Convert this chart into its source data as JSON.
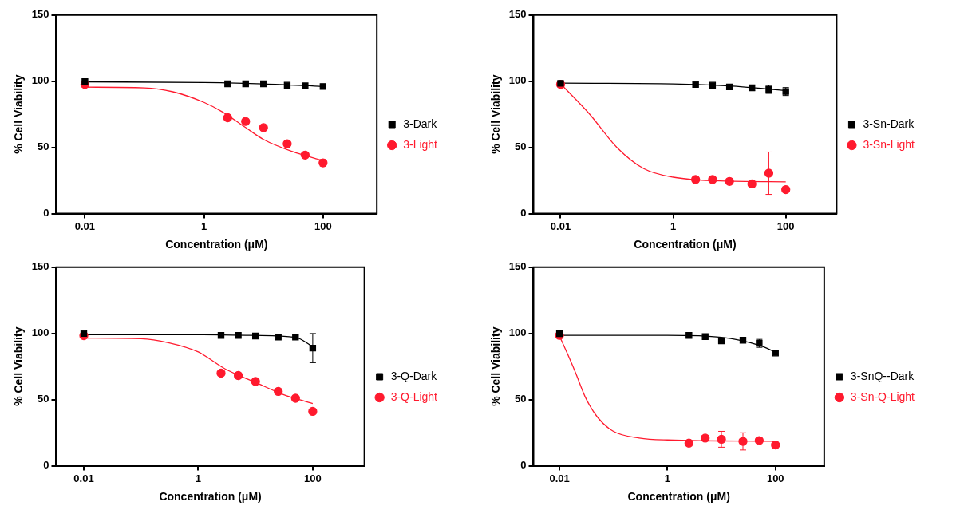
{
  "chart_data": [
    {
      "type": "scatter",
      "xlabel": "Concentration (μM)",
      "ylabel": "% Cell Viability",
      "log": "x",
      "grid": false,
      "legend": "right",
      "xlim": [
        0.0033,
        800
      ],
      "xticks": [
        0.01,
        1,
        100
      ],
      "ylim": [
        0,
        150
      ],
      "yticks": [
        0,
        50,
        100,
        150
      ],
      "x": [
        0.01,
        2.5,
        5,
        10,
        25,
        50,
        100
      ],
      "series": [
        {
          "name": "3-Dark",
          "color": "#000000",
          "marker": "square",
          "values": [
            99.7,
            98,
            98,
            98,
            97,
            96.5,
            96
          ]
        },
        {
          "name": "3-Light",
          "color": "#ff1a2e",
          "marker": "circle",
          "values": [
            97.6,
            72.4,
            69.6,
            64.9,
            52.7,
            44.2,
            38.3
          ],
          "errors": [
            null,
            2,
            null,
            null,
            2,
            2,
            2.5
          ]
        },
        {
          "color": "#000000",
          "type": "line",
          "marker": "none",
          "x": [
            0.01,
            1,
            10,
            100
          ],
          "values": [
            99.5,
            99,
            98,
            96
          ]
        },
        {
          "color": "#ff1a2e",
          "type": "line",
          "marker": "none",
          "x": [
            0.01,
            0.1,
            0.3,
            1,
            2,
            5,
            10,
            30,
            100
          ],
          "values": [
            95.5,
            95,
            92,
            84,
            77,
            65,
            56,
            47,
            40
          ]
        }
      ]
    },
    {
      "type": "scatter",
      "xlabel": "Concentration (μM)",
      "ylabel": "% Cell Viability",
      "log": "x",
      "grid": false,
      "legend": "right",
      "xlim": [
        0.0033,
        800
      ],
      "xticks": [
        0.01,
        1,
        100
      ],
      "ylim": [
        0,
        150
      ],
      "yticks": [
        0,
        50,
        100,
        150
      ],
      "x": [
        0.01,
        2.5,
        5,
        10,
        25,
        50,
        100
      ],
      "series": [
        {
          "name": "3-Sn-Dark",
          "color": "#000000",
          "marker": "square",
          "values": [
            98.4,
            97.6,
            97,
            95.7,
            95,
            93.8,
            92.2
          ],
          "errors": [
            null,
            null,
            null,
            null,
            2,
            3,
            3
          ]
        },
        {
          "name": "3-Sn-Light",
          "color": "#ff1a2e",
          "marker": "circle",
          "values": [
            97.6,
            25.7,
            25.7,
            24.3,
            22.4,
            30.5,
            18.1
          ],
          "errors": [
            null,
            null,
            null,
            null,
            2.5,
            16,
            null
          ]
        },
        {
          "color": "#000000",
          "type": "line",
          "marker": "none",
          "x": [
            0.01,
            1,
            10,
            100
          ],
          "values": [
            98.5,
            98,
            96.5,
            93
          ]
        },
        {
          "color": "#ff1a2e",
          "type": "line",
          "marker": "none",
          "x": [
            0.01,
            0.033,
            0.1,
            0.3,
            1,
            10,
            100
          ],
          "values": [
            98,
            75,
            50,
            34,
            27.5,
            24.5,
            24
          ]
        }
      ]
    },
    {
      "type": "scatter",
      "xlabel": "Concentration (μM)",
      "ylabel": "% Cell Viability",
      "log": "x",
      "grid": false,
      "legend": "right",
      "xlim": [
        0.0033,
        800
      ],
      "xticks": [
        0.01,
        1,
        100
      ],
      "ylim": [
        0,
        150
      ],
      "yticks": [
        0,
        50,
        100,
        150
      ],
      "x": [
        0.01,
        2.5,
        5,
        10,
        25,
        50,
        100
      ],
      "series": [
        {
          "name": "3-Q-Dark",
          "color": "#000000",
          "marker": "square",
          "values": [
            100,
            98.5,
            98.5,
            98,
            97.3,
            97.3,
            88.9
          ],
          "errors": [
            null,
            null,
            null,
            null,
            null,
            null,
            11
          ]
        },
        {
          "name": "3-Q-Light",
          "color": "#ff1a2e",
          "marker": "circle",
          "values": [
            98.3,
            70,
            68.2,
            63.7,
            56.2,
            51,
            41.1
          ]
        },
        {
          "color": "#000000",
          "type": "line",
          "marker": "none",
          "x": [
            0.01,
            1,
            10,
            50,
            100
          ],
          "values": [
            99,
            99,
            98.5,
            97,
            90
          ]
        },
        {
          "color": "#ff1a2e",
          "type": "line",
          "marker": "none",
          "x": [
            0.01,
            0.1,
            0.3,
            1,
            3,
            10,
            30,
            100
          ],
          "values": [
            96.5,
            96,
            93,
            86,
            73,
            63,
            54,
            47
          ]
        }
      ]
    },
    {
      "type": "scatter",
      "xlabel": "Concentration (μM)",
      "ylabel": "% Cell Viability",
      "log": "x",
      "grid": false,
      "legend": "right",
      "xlim": [
        0.0033,
        800
      ],
      "xticks": [
        0.01,
        1,
        100
      ],
      "ylim": [
        0,
        150
      ],
      "yticks": [
        0,
        50,
        100,
        150
      ],
      "x": [
        0.01,
        2.5,
        5,
        10,
        25,
        50,
        100
      ],
      "series": [
        {
          "name": "3-SnQ--Dark",
          "color": "#000000",
          "marker": "square",
          "values": [
            99.8,
            98.5,
            97.6,
            94.4,
            94.9,
            92.5,
            85.2
          ],
          "errors": [
            null,
            null,
            null,
            null,
            null,
            3,
            null
          ]
        },
        {
          "name": "3-Sn-Q-Light",
          "color": "#ff1a2e",
          "marker": "circle",
          "values": [
            98.5,
            17.1,
            20.9,
            20,
            18.4,
            19,
            15.7
          ],
          "errors": [
            null,
            null,
            2,
            6,
            6.5,
            null,
            2
          ]
        },
        {
          "color": "#000000",
          "type": "line",
          "marker": "none",
          "x": [
            0.01,
            1,
            10,
            50,
            100
          ],
          "values": [
            98.5,
            98.5,
            97,
            91,
            86
          ]
        },
        {
          "color": "#ff1a2e",
          "type": "line",
          "marker": "none",
          "x": [
            0.01,
            0.015,
            0.02,
            0.03,
            0.05,
            0.1,
            0.3,
            1,
            100
          ],
          "values": [
            98,
            82,
            70,
            52,
            37,
            26,
            21,
            19.5,
            18.5
          ]
        }
      ]
    }
  ]
}
